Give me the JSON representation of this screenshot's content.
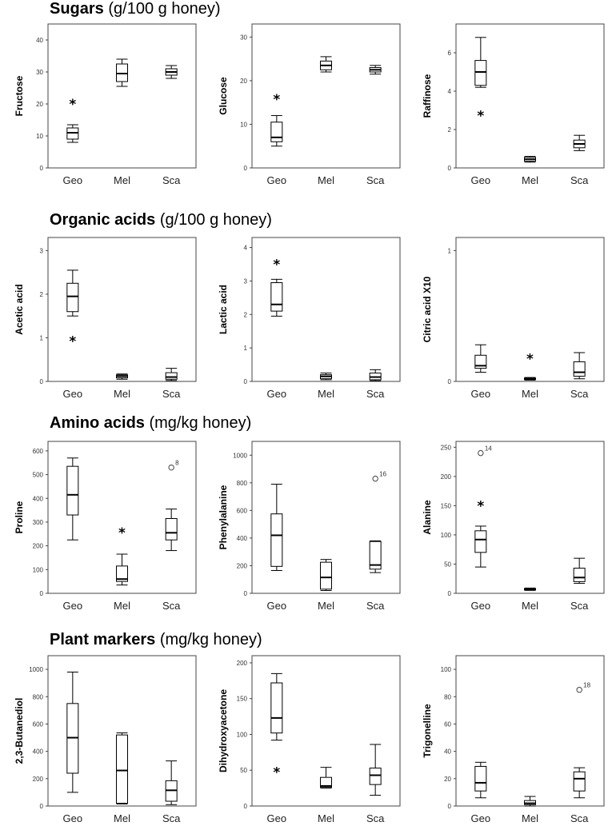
{
  "sections": [
    {
      "name": "Sugars",
      "unit": "(g/100 g honey)"
    },
    {
      "name": "Organic acids",
      "unit": "(g/100 g honey)"
    },
    {
      "name": "Amino acids",
      "unit": "(mg/kg honey)"
    },
    {
      "name": "Plant markers",
      "unit": "(mg/kg honey)"
    }
  ],
  "chart_data": [
    {
      "type": "box",
      "ylabel": "Fructose",
      "ylim": [
        0,
        45
      ],
      "yticks": [
        0,
        10,
        20,
        30,
        40
      ],
      "categories": [
        "Geo",
        "Mel",
        "Sca"
      ],
      "boxes": [
        {
          "min": 8,
          "q1": 9,
          "median": 11,
          "q3": 12.5,
          "max": 13.5,
          "outliers": [],
          "extremes": [
            21
          ]
        },
        {
          "min": 25.5,
          "q1": 27,
          "median": 29.5,
          "q3": 32.5,
          "max": 34,
          "outliers": [],
          "extremes": []
        },
        {
          "min": 28,
          "q1": 29,
          "median": 30,
          "q3": 31,
          "max": 32,
          "outliers": [],
          "extremes": []
        }
      ]
    },
    {
      "type": "box",
      "ylabel": "Glucose",
      "ylim": [
        0,
        33
      ],
      "yticks": [
        0,
        10,
        20,
        30
      ],
      "categories": [
        "Geo",
        "Mel",
        "Sca"
      ],
      "boxes": [
        {
          "min": 5,
          "q1": 6,
          "median": 7,
          "q3": 10.5,
          "max": 12,
          "outliers": [],
          "extremes": [
            16.5
          ]
        },
        {
          "min": 22,
          "q1": 22.5,
          "median": 23.5,
          "q3": 24.5,
          "max": 25.5,
          "outliers": [],
          "extremes": []
        },
        {
          "min": 21.5,
          "q1": 22,
          "median": 22.5,
          "q3": 23,
          "max": 23.5,
          "outliers": [],
          "extremes": []
        }
      ]
    },
    {
      "type": "box",
      "ylabel": "Raffinose",
      "ylim": [
        0,
        7.5
      ],
      "yticks": [
        0,
        2,
        4,
        6
      ],
      "categories": [
        "Geo",
        "Mel",
        "Sca"
      ],
      "boxes": [
        {
          "min": 4.2,
          "q1": 4.3,
          "median": 5,
          "q3": 5.6,
          "max": 6.8,
          "outliers": [],
          "extremes": [
            2.9
          ]
        },
        {
          "min": 0.3,
          "q1": 0.35,
          "median": 0.45,
          "q3": 0.55,
          "max": 0.6,
          "outliers": [],
          "extremes": []
        },
        {
          "min": 0.9,
          "q1": 1.05,
          "median": 1.25,
          "q3": 1.45,
          "max": 1.7,
          "outliers": [],
          "extremes": []
        }
      ]
    },
    {
      "type": "box",
      "ylabel": "Acetic acid",
      "ylim": [
        0,
        3.3
      ],
      "yticks": [
        0,
        1,
        2,
        3
      ],
      "categories": [
        "Geo",
        "Mel",
        "Sca"
      ],
      "boxes": [
        {
          "min": 1.5,
          "q1": 1.6,
          "median": 1.95,
          "q3": 2.25,
          "max": 2.55,
          "outliers": [],
          "extremes": [
            1
          ]
        },
        {
          "min": 0.05,
          "q1": 0.08,
          "median": 0.12,
          "q3": 0.15,
          "max": 0.17,
          "outliers": [],
          "extremes": []
        },
        {
          "min": 0.02,
          "q1": 0.05,
          "median": 0.1,
          "q3": 0.2,
          "max": 0.3,
          "outliers": [],
          "extremes": []
        }
      ]
    },
    {
      "type": "box",
      "ylabel": "Lactic acid",
      "ylim": [
        0,
        4.3
      ],
      "yticks": [
        0,
        1,
        2,
        3,
        4
      ],
      "categories": [
        "Geo",
        "Mel",
        "Sca"
      ],
      "boxes": [
        {
          "min": 1.95,
          "q1": 2.1,
          "median": 2.3,
          "q3": 2.95,
          "max": 3.05,
          "outliers": [],
          "extremes": [
            3.6
          ]
        },
        {
          "min": 0.05,
          "q1": 0.08,
          "median": 0.15,
          "q3": 0.2,
          "max": 0.25,
          "outliers": [],
          "extremes": []
        },
        {
          "min": 0.02,
          "q1": 0.05,
          "median": 0.13,
          "q3": 0.25,
          "max": 0.35,
          "outliers": [],
          "extremes": []
        }
      ]
    },
    {
      "type": "box",
      "ylabel": "Citric acid X10",
      "ylim": [
        0,
        1.1
      ],
      "yticks": [
        0,
        1
      ],
      "categories": [
        "Geo",
        "Mel",
        "Sca"
      ],
      "boxes": [
        {
          "min": 0.07,
          "q1": 0.1,
          "median": 0.12,
          "q3": 0.2,
          "max": 0.28,
          "outliers": [],
          "extremes": []
        },
        {
          "min": 0.01,
          "q1": 0.015,
          "median": 0.02,
          "q3": 0.025,
          "max": 0.03,
          "outliers": [],
          "extremes": [
            0.2
          ]
        },
        {
          "min": 0.02,
          "q1": 0.04,
          "median": 0.07,
          "q3": 0.15,
          "max": 0.22,
          "outliers": [],
          "extremes": []
        }
      ]
    },
    {
      "type": "box",
      "ylabel": "Proline",
      "ylim": [
        0,
        640
      ],
      "yticks": [
        0,
        100,
        200,
        300,
        400,
        500,
        600
      ],
      "categories": [
        "Geo",
        "Mel",
        "Sca"
      ],
      "boxes": [
        {
          "min": 225,
          "q1": 330,
          "median": 415,
          "q3": 535,
          "max": 570,
          "outliers": [],
          "extremes": []
        },
        {
          "min": 35,
          "q1": 50,
          "median": 60,
          "q3": 115,
          "max": 165,
          "outliers": [],
          "extremes": [
            270
          ]
        },
        {
          "min": 180,
          "q1": 225,
          "median": 255,
          "q3": 315,
          "max": 355,
          "outliers": [
            {
              "value": 530,
              "label": "8"
            }
          ],
          "extremes": []
        }
      ]
    },
    {
      "type": "box",
      "ylabel": "Phenylalanine",
      "ylim": [
        0,
        1100
      ],
      "yticks": [
        0,
        200,
        400,
        600,
        800,
        1000
      ],
      "categories": [
        "Geo",
        "Mel",
        "Sca"
      ],
      "boxes": [
        {
          "min": 165,
          "q1": 195,
          "median": 420,
          "q3": 575,
          "max": 790,
          "outliers": [],
          "extremes": []
        },
        {
          "min": 20,
          "q1": 30,
          "median": 115,
          "q3": 225,
          "max": 245,
          "outliers": [],
          "extremes": []
        },
        {
          "min": 150,
          "q1": 175,
          "median": 205,
          "q3": 375,
          "max": 380,
          "outliers": [
            {
              "value": 830,
              "label": "16"
            }
          ],
          "extremes": []
        }
      ]
    },
    {
      "type": "box",
      "ylabel": "Alanine",
      "ylim": [
        0,
        260
      ],
      "yticks": [
        0,
        50,
        100,
        150,
        200,
        250
      ],
      "categories": [
        "Geo",
        "Mel",
        "Sca"
      ],
      "boxes": [
        {
          "min": 45,
          "q1": 70,
          "median": 92,
          "q3": 107,
          "max": 115,
          "outliers": [
            {
              "value": 240,
              "label": "14"
            }
          ],
          "extremes": [
            155
          ]
        },
        {
          "min": 5,
          "q1": 6,
          "median": 7,
          "q3": 8,
          "max": 9,
          "outliers": [],
          "extremes": []
        },
        {
          "min": 17,
          "q1": 20,
          "median": 27,
          "q3": 43,
          "max": 60,
          "outliers": [],
          "extremes": []
        }
      ]
    },
    {
      "type": "box",
      "ylabel": "2,3-Butanediol",
      "ylim": [
        0,
        1100
      ],
      "yticks": [
        0,
        200,
        400,
        600,
        800,
        1000
      ],
      "categories": [
        "Geo",
        "Mel",
        "Sca"
      ],
      "boxes": [
        {
          "min": 100,
          "q1": 240,
          "median": 500,
          "q3": 750,
          "max": 980,
          "outliers": [],
          "extremes": []
        },
        {
          "min": 15,
          "q1": 20,
          "median": 260,
          "q3": 520,
          "max": 535,
          "outliers": [],
          "extremes": []
        },
        {
          "min": 10,
          "q1": 35,
          "median": 115,
          "q3": 185,
          "max": 330,
          "outliers": [],
          "extremes": []
        }
      ]
    },
    {
      "type": "box",
      "ylabel": "Dihydroxyacetone",
      "ylim": [
        0,
        210
      ],
      "yticks": [
        0,
        50,
        100,
        150,
        200
      ],
      "categories": [
        "Geo",
        "Mel",
        "Sca"
      ],
      "boxes": [
        {
          "min": 92,
          "q1": 102,
          "median": 123,
          "q3": 172,
          "max": 185,
          "outliers": [],
          "extremes": [
            52
          ]
        },
        {
          "min": 25,
          "q1": 26,
          "median": 28,
          "q3": 40,
          "max": 54,
          "outliers": [],
          "extremes": []
        },
        {
          "min": 15,
          "q1": 30,
          "median": 43,
          "q3": 53,
          "max": 86,
          "outliers": [],
          "extremes": []
        }
      ]
    },
    {
      "type": "box",
      "ylabel": "Trigonelline",
      "ylim": [
        0,
        110
      ],
      "yticks": [
        0,
        20,
        40,
        60,
        80,
        100
      ],
      "categories": [
        "Geo",
        "Mel",
        "Sca"
      ],
      "boxes": [
        {
          "min": 6,
          "q1": 11,
          "median": 17,
          "q3": 29,
          "max": 32,
          "outliers": [],
          "extremes": []
        },
        {
          "min": 0,
          "q1": 1,
          "median": 2,
          "q3": 4,
          "max": 7,
          "outliers": [],
          "extremes": []
        },
        {
          "min": 6,
          "q1": 11,
          "median": 20,
          "q3": 25,
          "max": 28,
          "outliers": [
            {
              "value": 85,
              "label": "18"
            }
          ],
          "extremes": []
        }
      ]
    }
  ]
}
